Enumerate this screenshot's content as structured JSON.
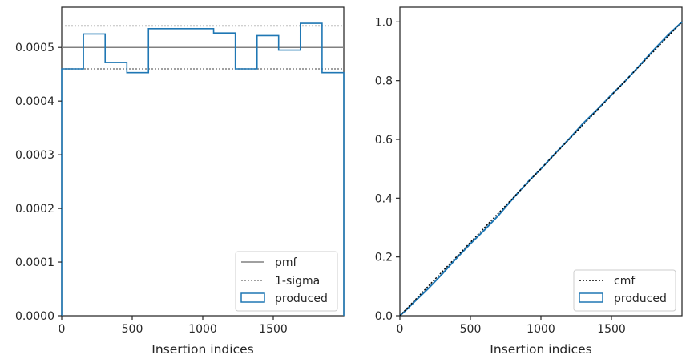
{
  "colors": {
    "produced": "#1f77b4",
    "reference": "#808080",
    "cmf": "#000000",
    "axes": "#262626"
  },
  "chart_data": [
    {
      "type": "histogram",
      "xlabel": "Insertion indices",
      "ylabel": "",
      "xlim": [
        0,
        2000
      ],
      "ylim": [
        0,
        0.000575
      ],
      "xticks": [
        0,
        500,
        1000,
        1500
      ],
      "yticks": [
        "0.0000",
        "0.0001",
        "0.0002",
        "0.0003",
        "0.0004",
        "0.0005"
      ],
      "ytick_values": [
        0,
        0.0001,
        0.0002,
        0.0003,
        0.0004,
        0.0005
      ],
      "legend_position": "lower right",
      "pmf": 0.0005,
      "sigma_band": [
        0.00046,
        0.00054
      ],
      "bin_edges": [
        0,
        154,
        308,
        462,
        615,
        769,
        923,
        1077,
        1231,
        1385,
        1538,
        1692,
        1846,
        2000
      ],
      "produced": [
        0.00046,
        0.000525,
        0.000472,
        0.000453,
        0.000535,
        0.000535,
        0.000535,
        0.000527,
        0.00046,
        0.000522,
        0.000495,
        0.000545,
        0.000453
      ],
      "legend": {
        "pmf": "pmf",
        "sigma": "1-sigma",
        "produced": "produced"
      }
    },
    {
      "type": "line",
      "xlabel": "Insertion indices",
      "ylabel": "",
      "xlim": [
        0,
        2000
      ],
      "ylim": [
        0,
        1.05
      ],
      "xticks": [
        0,
        500,
        1000,
        1500
      ],
      "yticks": [
        "0.0",
        "0.2",
        "0.4",
        "0.6",
        "0.8",
        "1.0"
      ],
      "ytick_values": [
        0,
        0.2,
        0.4,
        0.6,
        0.8,
        1.0
      ],
      "legend_position": "lower right",
      "cmf": {
        "x": [
          0,
          2000
        ],
        "y": [
          0,
          1
        ]
      },
      "produced": {
        "x": [
          0,
          50,
          100,
          200,
          300,
          400,
          500,
          600,
          700,
          800,
          900,
          1000,
          1100,
          1200,
          1300,
          1400,
          1500,
          1600,
          1700,
          1800,
          1900,
          2000
        ],
        "y": [
          0,
          0.022,
          0.046,
          0.092,
          0.142,
          0.195,
          0.245,
          0.292,
          0.342,
          0.398,
          0.452,
          0.5,
          0.552,
          0.602,
          0.655,
          0.702,
          0.752,
          0.8,
          0.852,
          0.905,
          0.955,
          1.0
        ]
      },
      "legend": {
        "cmf": "cmf",
        "produced": "produced"
      }
    }
  ]
}
